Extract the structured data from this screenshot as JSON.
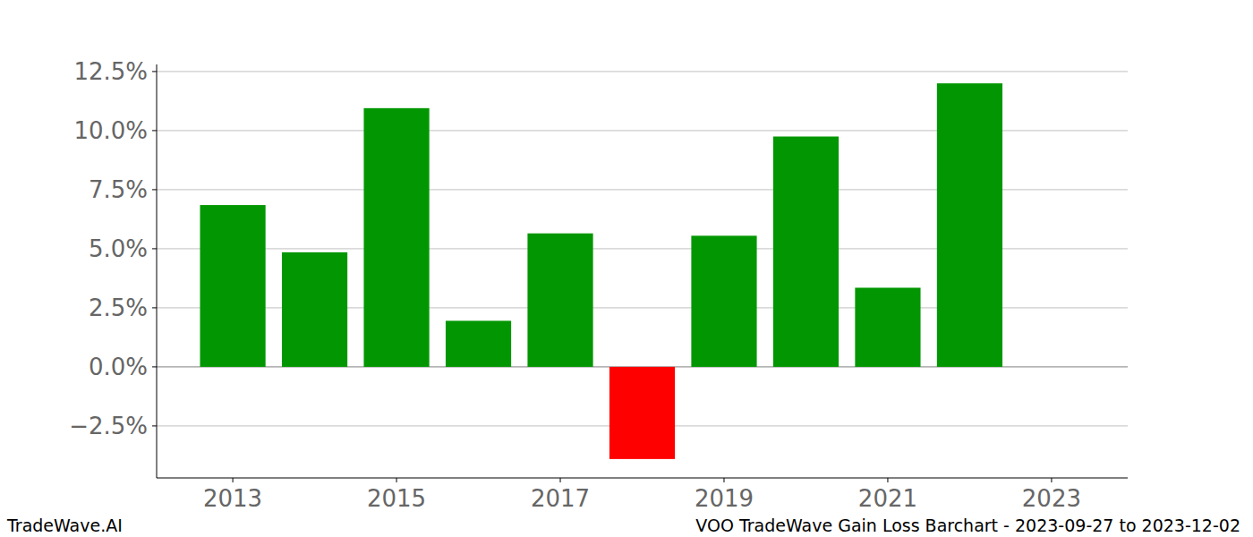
{
  "chart_data": {
    "type": "bar",
    "title": "VOO TradeWave Gain Loss Barchart - 2023-09-27 to 2023-12-02",
    "annotations": [
      "TradeWave.AI"
    ],
    "x": [
      2013,
      2014,
      2015,
      2016,
      2017,
      2018,
      2019,
      2020,
      2021,
      2022
    ],
    "values": [
      6.85,
      4.85,
      10.95,
      1.95,
      5.65,
      -3.9,
      5.55,
      9.75,
      3.35,
      12.0
    ],
    "colors": [
      "#029702",
      "#029702",
      "#029702",
      "#029702",
      "#029702",
      "#ff0000",
      "#029702",
      "#029702",
      "#029702",
      "#029702"
    ],
    "xlim": [
      2012.07,
      2023.93
    ],
    "xticks": [
      2013,
      2015,
      2017,
      2019,
      2021,
      2023
    ],
    "ylim": [
      -4.7,
      12.8
    ],
    "yticks": [
      {
        "value": -2.5,
        "label": "−2.5%"
      },
      {
        "value": 0,
        "label": "0.0%"
      },
      {
        "value": 2.5,
        "label": "2.5%"
      },
      {
        "value": 5,
        "label": "5.0%"
      },
      {
        "value": 7.5,
        "label": "7.5%"
      },
      {
        "value": 10,
        "label": "10.0%"
      },
      {
        "value": 12.5,
        "label": "12.5%"
      }
    ],
    "grid": true
  }
}
